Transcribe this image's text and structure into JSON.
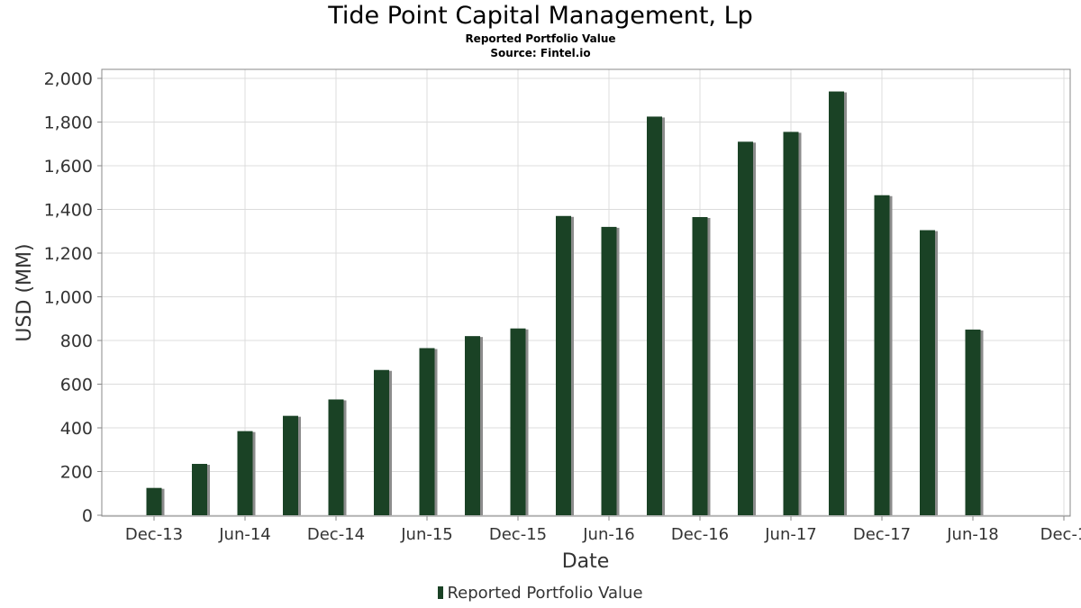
{
  "chart_data": {
    "type": "bar",
    "title": "Tide Point Capital Management, Lp",
    "subtitle_lines": [
      "Reported Portfolio Value",
      "Source: Fintel.io"
    ],
    "xlabel": "Date",
    "ylabel": "USD (MM)",
    "ylim": [
      0,
      2000
    ],
    "yticks": [
      0,
      200,
      400,
      600,
      800,
      1000,
      1200,
      1400,
      1600,
      1800,
      2000
    ],
    "ytick_labels": [
      "0",
      "200",
      "400",
      "600",
      "800",
      "1,000",
      "1,200",
      "1,400",
      "1,600",
      "1,800",
      "2,000"
    ],
    "xtick_labels": [
      "Dec-13",
      "Jun-14",
      "Dec-14",
      "Jun-15",
      "Dec-15",
      "Jun-16",
      "Dec-16",
      "Jun-17",
      "Dec-17",
      "Jun-18",
      "Dec-1"
    ],
    "x": [
      "2013-12",
      "2014-03",
      "2014-06",
      "2014-09",
      "2014-12",
      "2015-03",
      "2015-06",
      "2015-09",
      "2015-12",
      "2016-03",
      "2016-06",
      "2016-09",
      "2016-12",
      "2017-03",
      "2017-06",
      "2017-09",
      "2017-12",
      "2018-03",
      "2018-06"
    ],
    "series": [
      {
        "name": "Reported Portfolio Value",
        "color": "#1a4225",
        "values": [
          125,
          235,
          385,
          455,
          530,
          665,
          765,
          820,
          855,
          1370,
          1320,
          1825,
          1365,
          1710,
          1755,
          1940,
          1465,
          1305,
          850
        ]
      }
    ],
    "grid": true,
    "legend_position": "bottom-center"
  }
}
